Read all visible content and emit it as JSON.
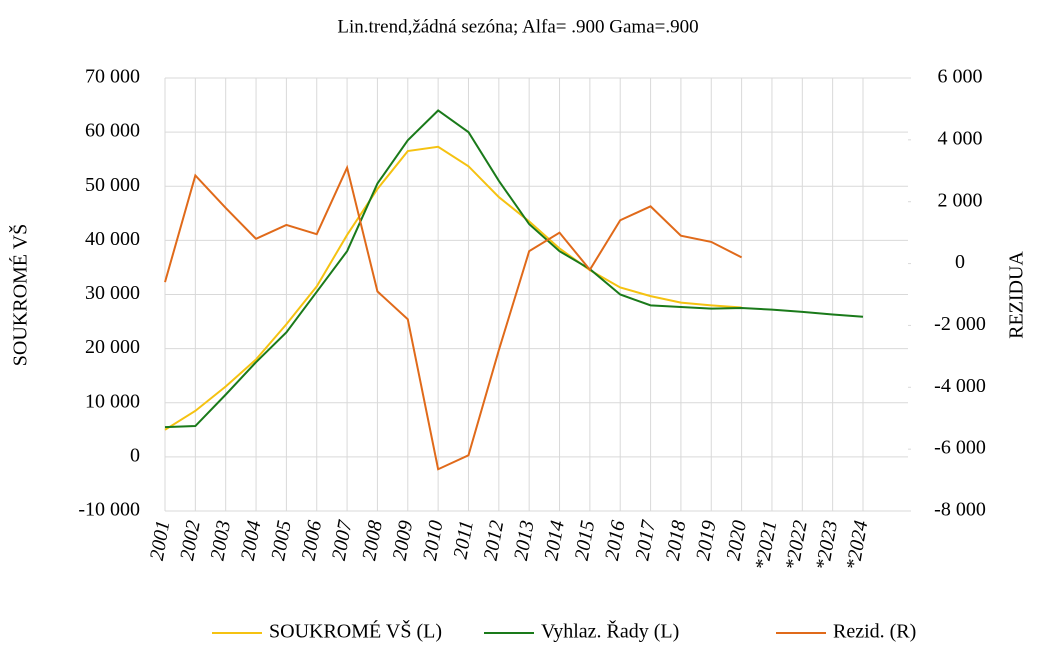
{
  "chart_data": {
    "type": "line",
    "title": "Lin.trend,žádná sezóna; Alfa=  .900 Gama=.900",
    "y_label": "SOUKROMÉ VŠ",
    "y2_label": "REZIDUA",
    "categories": [
      "2001",
      "2002",
      "2003",
      "2004",
      "2005",
      "2006",
      "2007",
      "2008",
      "2009",
      "2010",
      "2011",
      "2012",
      "2013",
      "2014",
      "2015",
      "2016",
      "2017",
      "2018",
      "2019",
      "2020",
      "*2021",
      "*2022",
      "*2023",
      "*2024"
    ],
    "ylim": [
      -10000,
      70000
    ],
    "yticks": [
      {
        "value": -10000,
        "label": "-10 000"
      },
      0,
      {
        "value": 10000,
        "label": "10 000"
      },
      {
        "value": 20000,
        "label": "20 000"
      },
      {
        "value": 30000,
        "label": "30 000"
      },
      {
        "value": 40000,
        "label": "40 000"
      },
      {
        "value": 50000,
        "label": "50 000"
      },
      {
        "value": 60000,
        "label": "60 000"
      },
      {
        "value": 70000,
        "label": "70 000"
      }
    ],
    "y2lim": [
      -8000,
      6000
    ],
    "y2ticks": [
      {
        "value": -8000,
        "label": "-8 000"
      },
      {
        "value": -6000,
        "label": "-6 000"
      },
      {
        "value": -4000,
        "label": "-4 000"
      },
      {
        "value": -2000,
        "label": "-2 000"
      },
      0,
      {
        "value": 2000,
        "label": "2 000"
      },
      {
        "value": 4000,
        "label": "4 000"
      },
      {
        "value": 6000,
        "label": "6 000"
      }
    ],
    "grid": true,
    "legend": "bottom",
    "series": [
      {
        "name": "SOUKROMÉ VŠ (L)",
        "color": "#f5c211",
        "values": [
          5000,
          8500,
          13000,
          18000,
          24500,
          31500,
          41000,
          49500,
          56500,
          57300,
          53700,
          48000,
          43500,
          38500,
          34500,
          31300,
          29700,
          28500,
          28000,
          27600,
          null,
          null,
          null,
          null
        ]
      },
      {
        "name": "Vyhlaz. Řady (L)",
        "color": "#1a7a1a",
        "values": [
          5500,
          5700,
          11500,
          17500,
          23000,
          30500,
          38000,
          50500,
          58500,
          64000,
          60000,
          51000,
          43000,
          38000,
          34700,
          30000,
          28000,
          27700,
          27400,
          27500,
          27200,
          26800,
          26300,
          25900
        ]
      },
      {
        "name": "Rezid. (R)",
        "color": "#e06a1a",
        "axis": "y2",
        "values": [
          -600,
          2850,
          1800,
          800,
          1250,
          950,
          3100,
          -900,
          -1800,
          -6650,
          -6200,
          -2800,
          400,
          1000,
          -200,
          1400,
          1850,
          900,
          700,
          200,
          null,
          null,
          null,
          null
        ]
      }
    ]
  }
}
